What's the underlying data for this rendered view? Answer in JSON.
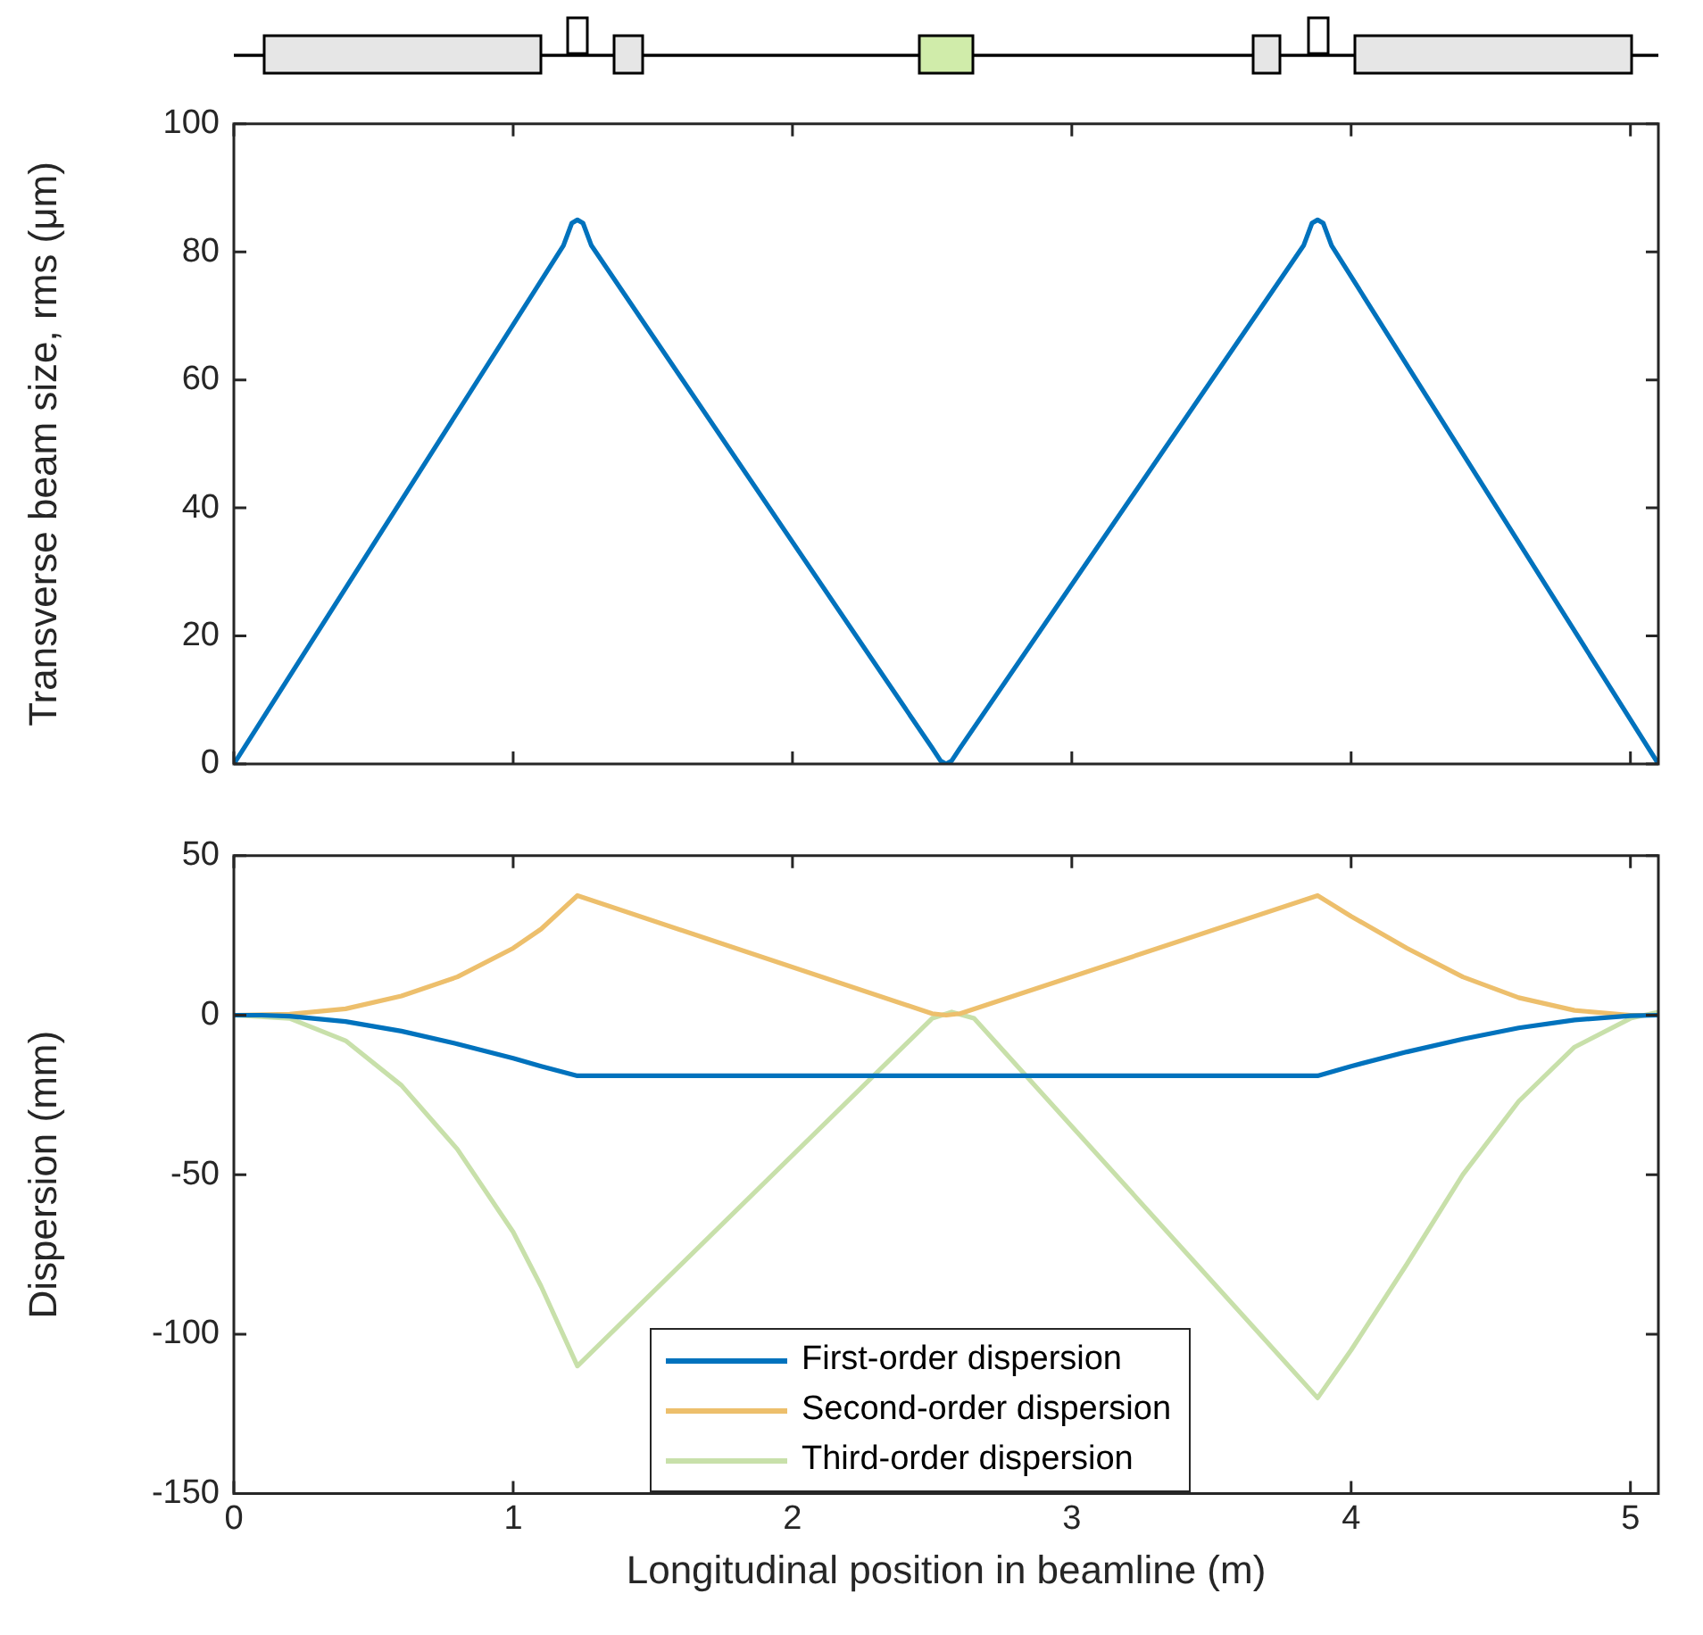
{
  "chart_data": [
    {
      "type": "line",
      "ylabel": "Transverse beam size, rms (μm)",
      "xlim": [
        0,
        5.1
      ],
      "xticks": [
        0,
        1,
        2,
        3,
        4,
        5
      ],
      "ylim": [
        0,
        100
      ],
      "yticks": [
        0,
        20,
        40,
        60,
        80,
        100
      ],
      "tick_labels": "y",
      "marker": "none",
      "series": [
        {
          "color": "#0072bd",
          "x": [
            0,
            1.18,
            1.21,
            1.23,
            1.25,
            1.28,
            2.5,
            2.53,
            2.55,
            2.57,
            2.6,
            3.83,
            3.86,
            3.88,
            3.9,
            3.93,
            5.1
          ],
          "values": [
            0,
            81,
            84.5,
            85,
            84.5,
            81,
            2.5,
            0.5,
            0,
            0.5,
            2.5,
            81,
            84.5,
            85,
            84.5,
            81,
            0
          ]
        }
      ]
    },
    {
      "type": "line",
      "xlabel": "Longitudinal position in beamline (m)",
      "ylabel": "Dispersion (mm)",
      "xlim": [
        0,
        5.1
      ],
      "xticks": [
        0,
        1,
        2,
        3,
        4,
        5
      ],
      "ylim": [
        -150,
        50
      ],
      "yticks": [
        -150,
        -100,
        -50,
        0,
        50
      ],
      "legend": "bottom",
      "marker": "none",
      "series": [
        {
          "name": "First-order dispersion",
          "color": "#0072bd",
          "x": [
            0,
            0.1,
            0.2,
            0.4,
            0.6,
            0.8,
            1.0,
            1.1,
            1.23,
            3.88,
            4.0,
            4.2,
            4.4,
            4.6,
            4.8,
            5.0,
            5.1
          ],
          "values": [
            0,
            0,
            -0.3,
            -2,
            -5,
            -9,
            -13.5,
            -16,
            -19,
            -19,
            -16,
            -11.5,
            -7.5,
            -4,
            -1.5,
            -0.2,
            0
          ]
        },
        {
          "name": "Second-order dispersion",
          "color": "#edbf6c",
          "x": [
            0,
            0.2,
            0.4,
            0.6,
            0.8,
            1.0,
            1.1,
            1.23,
            2.5,
            2.55,
            2.6,
            3.88,
            4.0,
            4.2,
            4.4,
            4.6,
            4.8,
            5.0,
            5.1
          ],
          "values": [
            0,
            0.3,
            2,
            6,
            12,
            21,
            27,
            37.5,
            0.5,
            0,
            0.5,
            37.5,
            31,
            21,
            12,
            5.5,
            1.5,
            0,
            0
          ]
        },
        {
          "name": "Third-order dispersion",
          "color": "#c8e0aa",
          "x": [
            0,
            0.2,
            0.4,
            0.6,
            0.8,
            1.0,
            1.1,
            1.23,
            2.5,
            2.57,
            2.65,
            3.88,
            4.0,
            4.2,
            4.4,
            4.6,
            4.8,
            5.0,
            5.1
          ],
          "values": [
            0,
            -1,
            -8,
            -22,
            -42,
            -68,
            -85,
            -110,
            -1,
            1,
            -1,
            -120,
            -105,
            -78,
            -50,
            -27,
            -10,
            -1,
            1
          ]
        }
      ]
    }
  ]
}
